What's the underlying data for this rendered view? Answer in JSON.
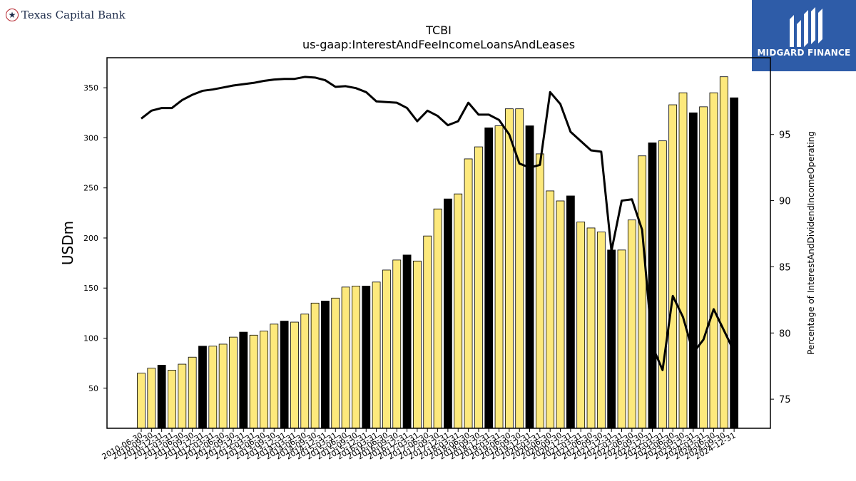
{
  "brand": {
    "name": "Texas Capital Bank",
    "icon": "star-icon",
    "accent": "#b4232c"
  },
  "logo": {
    "text": "MIDGARD FINANCE",
    "icon": "midgard-logo-icon",
    "background": "#2e5ca8"
  },
  "chart_data": {
    "type": "bar",
    "title": "TCBI",
    "subtitle": "us-gaap:InterestAndFeeIncomeLoansAndLeases",
    "ylabel": "USDm",
    "y2label": "Percentage of InterestAndDividendIncomeOperating",
    "ylim": [
      10,
      380
    ],
    "y2lim": [
      72.8,
      100.8
    ],
    "yticks": [
      50,
      100,
      150,
      200,
      250,
      300,
      350
    ],
    "y2ticks": [
      75,
      80,
      85,
      90,
      95
    ],
    "categories": [
      "2010-06-30",
      "2010-09-30",
      "2010-12-31",
      "2011-03-31",
      "2011-06-30",
      "2011-09-30",
      "2011-12-31",
      "2012-03-31",
      "2012-06-30",
      "2012-09-30",
      "2012-12-31",
      "2013-03-31",
      "2013-06-30",
      "2013-09-30",
      "2013-12-31",
      "2014-03-31",
      "2014-06-30",
      "2014-09-30",
      "2014-12-31",
      "2015-03-31",
      "2015-06-30",
      "2015-09-30",
      "2015-12-31",
      "2016-03-31",
      "2016-06-30",
      "2016-09-30",
      "2016-12-31",
      "2017-03-31",
      "2017-06-30",
      "2017-09-30",
      "2017-12-31",
      "2018-03-31",
      "2018-06-30",
      "2018-09-30",
      "2018-12-31",
      "2019-03-31",
      "2019-06-30",
      "2019-09-30",
      "2019-12-31",
      "2020-03-31",
      "2020-06-30",
      "2020-09-30",
      "2020-12-31",
      "2021-03-31",
      "2021-06-30",
      "2021-09-30",
      "2021-12-31",
      "2022-03-31",
      "2022-06-30",
      "2022-09-30",
      "2022-12-31",
      "2023-03-31",
      "2023-06-30",
      "2023-09-30",
      "2023-12-31",
      "2024-03-31",
      "2024-06-30",
      "2024-09-30",
      "2024-12-31"
    ],
    "xtick_labels": [
      "2010-06-30",
      "2010-09-30",
      "2010-12-31",
      "2011-03-31",
      "2011-06-30",
      "2011-09-30",
      "2011-12-31",
      "2012-03-31",
      "2012-06-30",
      "2012-09-30",
      "2012-12-31",
      "2013-03-31",
      "2013-06-30",
      "2013-09-30",
      "2013-12-31",
      "2014-03-31",
      "2014-06-30",
      "2014-09-30",
      "2014-12-31",
      "2015-03-31",
      "2015-06-30",
      "2015-09-30",
      "2015-12-31",
      "2016-03-31",
      "2016-06-30",
      "2016-09-30",
      "2016-12-31",
      "2017-03-31",
      "2017-06-30",
      "2017-09-30",
      "2017-12-31",
      "2018-03-31",
      "2018-06-30",
      "2018-09-30",
      "2018-12-31",
      "2019-03-31",
      "2019-06-30",
      "2019-09-30",
      "2019-12-31",
      "2020-03-31",
      "2020-06-30",
      "2020-09-30",
      "2020-12-31",
      "2021-03-31",
      "2021-06-30",
      "2021-09-30",
      "2021-12-31",
      "2022-03-31",
      "2022-06-30",
      "2022-09-30",
      "2022-12-31",
      "2023-03-31",
      "2023-06-30",
      "2023-09-30",
      "2023-12-31",
      "2024-03-31",
      "2024-06-30",
      "2024-09-30",
      "2024-12-31"
    ],
    "series": [
      {
        "kind": "bar",
        "values": [
          65,
          70,
          73,
          68,
          74,
          81,
          92,
          92,
          94,
          101,
          106,
          103,
          107,
          114,
          117,
          116,
          124,
          135,
          137,
          140,
          151,
          152,
          152,
          156,
          168,
          178,
          183,
          177,
          202,
          229,
          239,
          244,
          279,
          291,
          310,
          312,
          329,
          329,
          312,
          284,
          247,
          237,
          242,
          216,
          210,
          206,
          188,
          188,
          218,
          282,
          295,
          297,
          333,
          345,
          325,
          331,
          345,
          361,
          340
        ],
        "fill_colors": [
          "#fde97c",
          "#fde97c",
          "#000000",
          "#fde97c",
          "#fde97c",
          "#fde97c",
          "#000000",
          "#fde97c",
          "#fde97c",
          "#fde97c",
          "#000000",
          "#fde97c",
          "#fde97c",
          "#fde97c",
          "#000000",
          "#fde97c",
          "#fde97c",
          "#fde97c",
          "#000000",
          "#fde97c",
          "#fde97c",
          "#fde97c",
          "#000000",
          "#fde97c",
          "#fde97c",
          "#fde97c",
          "#000000",
          "#fde97c",
          "#fde97c",
          "#fde97c",
          "#000000",
          "#fde97c",
          "#fde97c",
          "#fde97c",
          "#000000",
          "#fde97c",
          "#fde97c",
          "#fde97c",
          "#000000",
          "#fde97c",
          "#fde97c",
          "#fde97c",
          "#000000",
          "#fde97c",
          "#fde97c",
          "#fde97c",
          "#000000",
          "#fde97c",
          "#fde97c",
          "#fde97c",
          "#000000",
          "#fde97c",
          "#fde97c",
          "#fde97c",
          "#000000",
          "#fde97c",
          "#fde97c",
          "#fde97c",
          "#000000"
        ]
      },
      {
        "kind": "line",
        "axis": "right",
        "color": "#000000",
        "values": [
          96.2,
          96.8,
          97.0,
          97.0,
          97.6,
          98.0,
          98.3,
          98.4,
          98.55,
          98.7,
          98.8,
          98.9,
          99.05,
          99.15,
          99.2,
          99.2,
          99.35,
          99.3,
          99.1,
          98.6,
          98.65,
          98.5,
          98.2,
          97.5,
          97.45,
          97.4,
          97.0,
          96.0,
          96.8,
          96.4,
          95.7,
          96.0,
          97.4,
          96.5,
          96.5,
          96.1,
          95.0,
          92.8,
          92.5,
          92.7,
          98.2,
          97.3,
          95.2,
          94.5,
          93.8,
          93.7,
          86.2,
          90.0,
          90.1,
          87.8,
          79.0,
          77.2,
          82.8,
          81.2,
          78.5,
          79.5,
          81.8,
          80.2,
          78.6
        ]
      }
    ]
  }
}
